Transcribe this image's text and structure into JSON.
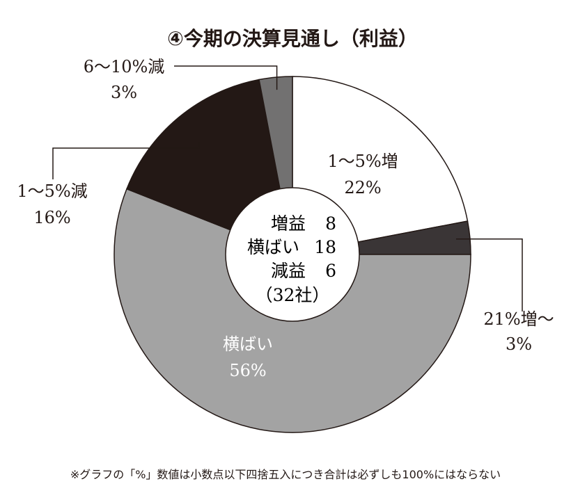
{
  "chart_data": {
    "type": "pie",
    "title": "④今期の決算見通し（利益）",
    "slices": [
      {
        "label": "1〜5%増",
        "value": 22,
        "value_label": "22%",
        "color": "#ffffff"
      },
      {
        "label": "21%増〜",
        "value": 3,
        "value_label": "3%",
        "color": "#3a3536"
      },
      {
        "label": "横ばい",
        "value": 56,
        "value_label": "56%",
        "color": "#a3a3a3"
      },
      {
        "label": "1〜5%減",
        "value": 16,
        "value_label": "16%",
        "color": "#231815"
      },
      {
        "label": "6〜10%減",
        "value": 3,
        "value_label": "3%",
        "color": "#727171"
      }
    ],
    "center": {
      "lines": [
        {
          "label": "増益",
          "count": "8"
        },
        {
          "label": "横ばい",
          "count": "18"
        },
        {
          "label": "減益",
          "count": "6"
        }
      ],
      "total": "（32社）"
    },
    "footnote": "※グラフの「%」数値は小数点以下四捨五入につき合計は必ずしも100%にはならない"
  }
}
